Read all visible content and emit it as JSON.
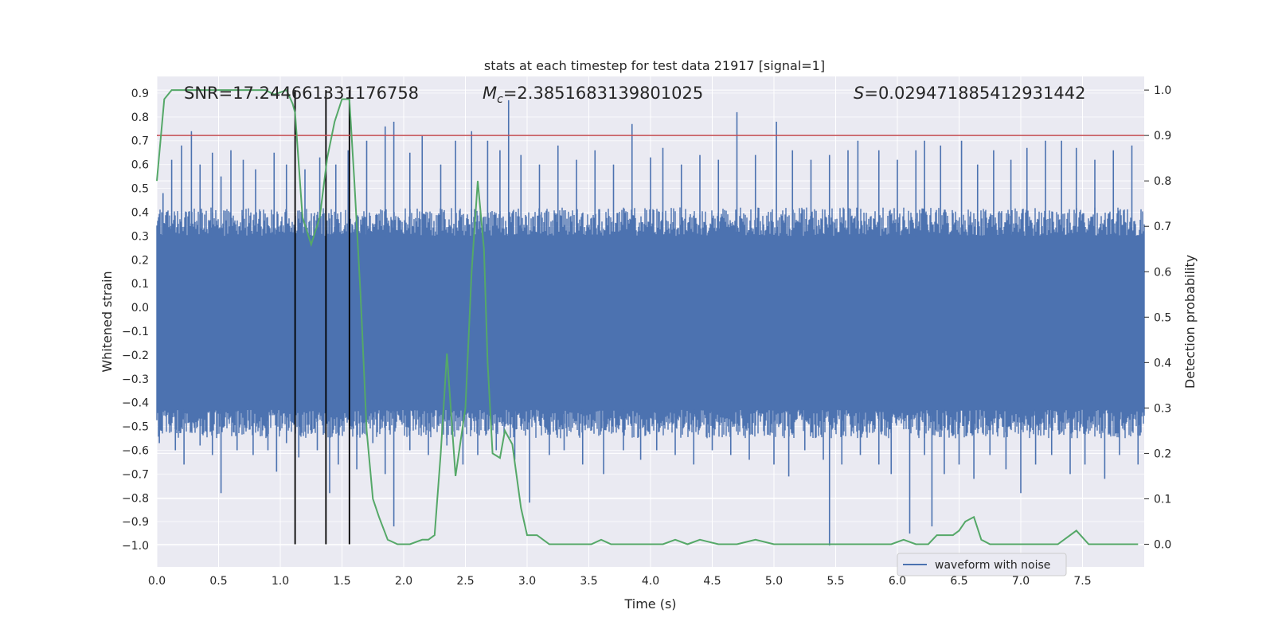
{
  "chart_data": {
    "type": "line",
    "title": "stats at each timestep for test data 21917 [signal=1]",
    "xlabel": "Time (s)",
    "ylabel_left": "Whitened strain",
    "ylabel_right": "Detection probability",
    "xlim": [
      0.0,
      8.0
    ],
    "ylim_left": [
      -1.09,
      0.97
    ],
    "ylim_right": [
      -0.05,
      1.03
    ],
    "x_ticks": [
      0.0,
      0.5,
      1.0,
      1.5,
      2.0,
      2.5,
      3.0,
      3.5,
      4.0,
      4.5,
      5.0,
      5.5,
      6.0,
      6.5,
      7.0,
      7.5
    ],
    "x_tick_labels": [
      "0.0",
      "0.5",
      "1.0",
      "1.5",
      "2.0",
      "2.5",
      "3.0",
      "3.5",
      "4.0",
      "4.5",
      "5.0",
      "5.5",
      "6.0",
      "6.5",
      "7.0",
      "7.5"
    ],
    "y_left_ticks": [
      0.9,
      0.8,
      0.7,
      0.6,
      0.5,
      0.4,
      0.3,
      0.2,
      0.1,
      0.0,
      -0.1,
      -0.2,
      -0.3,
      -0.4,
      -0.5,
      -0.6,
      -0.7,
      -0.8,
      -0.9,
      -1.0
    ],
    "y_left_tick_labels": [
      "0.9",
      "0.8",
      "0.7",
      "0.6",
      "0.5",
      "0.4",
      "0.3",
      "0.2",
      "0.1",
      "0.0",
      "−0.1",
      "−0.2",
      "−0.3",
      "−0.4",
      "−0.5",
      "−0.6",
      "−0.7",
      "−0.8",
      "−0.9",
      "−1.0"
    ],
    "y_right_ticks": [
      1.0,
      0.9,
      0.8,
      0.7,
      0.6,
      0.5,
      0.4,
      0.3,
      0.2,
      0.1,
      0.0
    ],
    "y_right_tick_labels": [
      "1.0",
      "0.9",
      "0.8",
      "0.7",
      "0.6",
      "0.5",
      "0.4",
      "0.3",
      "0.2",
      "0.1",
      "0.0"
    ],
    "annotations": {
      "snr": "SNR=17.244661331176758",
      "mc_symbol": "M",
      "mc_sub": "c",
      "mc_value": "=2.3851683139801025",
      "s_symbol": "S",
      "s_value": "=0.029471885412931442"
    },
    "threshold_right": 0.9,
    "vertical_markers_s": [
      1.12,
      1.37,
      1.56
    ],
    "waveform": {
      "name": "waveform with noise",
      "t_start": 0.0,
      "t_end": 8.0,
      "envelope_top": 0.3,
      "envelope_bottom": -0.43,
      "spikes": [
        [
          0.05,
          0.48
        ],
        [
          0.12,
          0.62
        ],
        [
          0.2,
          0.68
        ],
        [
          0.28,
          0.74
        ],
        [
          0.35,
          0.6
        ],
        [
          0.45,
          0.65
        ],
        [
          0.52,
          0.55
        ],
        [
          0.6,
          0.66
        ],
        [
          0.7,
          0.62
        ],
        [
          0.8,
          0.58
        ],
        [
          0.95,
          0.65
        ],
        [
          1.05,
          0.6
        ],
        [
          1.2,
          0.58
        ],
        [
          1.32,
          0.63
        ],
        [
          1.45,
          0.6
        ],
        [
          1.55,
          0.66
        ],
        [
          1.7,
          0.7
        ],
        [
          1.85,
          0.76
        ],
        [
          1.92,
          0.78
        ],
        [
          2.05,
          0.65
        ],
        [
          2.15,
          0.72
        ],
        [
          2.3,
          0.6
        ],
        [
          2.42,
          0.7
        ],
        [
          2.55,
          0.74
        ],
        [
          2.68,
          0.7
        ],
        [
          2.78,
          0.66
        ],
        [
          2.85,
          0.87
        ],
        [
          2.95,
          0.64
        ],
        [
          3.1,
          0.6
        ],
        [
          3.25,
          0.68
        ],
        [
          3.4,
          0.62
        ],
        [
          3.55,
          0.66
        ],
        [
          3.7,
          0.6
        ],
        [
          3.85,
          0.77
        ],
        [
          4.0,
          0.63
        ],
        [
          4.1,
          0.67
        ],
        [
          4.25,
          0.6
        ],
        [
          4.4,
          0.64
        ],
        [
          4.55,
          0.62
        ],
        [
          4.7,
          0.82
        ],
        [
          4.85,
          0.64
        ],
        [
          5.02,
          0.78
        ],
        [
          5.15,
          0.66
        ],
        [
          5.3,
          0.62
        ],
        [
          5.45,
          0.64
        ],
        [
          5.6,
          0.66
        ],
        [
          5.68,
          0.7
        ],
        [
          5.85,
          0.66
        ],
        [
          6.0,
          0.62
        ],
        [
          6.15,
          0.66
        ],
        [
          6.22,
          0.7
        ],
        [
          6.35,
          0.68
        ],
        [
          6.52,
          0.7
        ],
        [
          6.65,
          0.6
        ],
        [
          6.78,
          0.66
        ],
        [
          6.92,
          0.62
        ],
        [
          7.05,
          0.67
        ],
        [
          7.2,
          0.7
        ],
        [
          7.33,
          0.7
        ],
        [
          7.45,
          0.67
        ],
        [
          7.6,
          0.62
        ],
        [
          7.75,
          0.66
        ],
        [
          7.9,
          0.68
        ]
      ],
      "dips": [
        [
          0.02,
          -0.57
        ],
        [
          0.15,
          -0.6
        ],
        [
          0.22,
          -0.66
        ],
        [
          0.35,
          -0.58
        ],
        [
          0.45,
          -0.62
        ],
        [
          0.52,
          -0.78
        ],
        [
          0.65,
          -0.6
        ],
        [
          0.78,
          -0.62
        ],
        [
          0.9,
          -0.6
        ],
        [
          0.97,
          -0.69
        ],
        [
          1.05,
          -0.57
        ],
        [
          1.15,
          -0.63
        ],
        [
          1.3,
          -0.6
        ],
        [
          1.4,
          -0.78
        ],
        [
          1.47,
          -0.66
        ],
        [
          1.62,
          -0.68
        ],
        [
          1.75,
          -0.57
        ],
        [
          1.85,
          -0.7
        ],
        [
          1.92,
          -0.92
        ],
        [
          2.05,
          -0.6
        ],
        [
          2.2,
          -0.62
        ],
        [
          2.35,
          -0.58
        ],
        [
          2.48,
          -0.66
        ],
        [
          2.6,
          -0.62
        ],
        [
          2.75,
          -0.6
        ],
        [
          2.9,
          -0.64
        ],
        [
          3.02,
          -0.82
        ],
        [
          3.18,
          -0.62
        ],
        [
          3.3,
          -0.6
        ],
        [
          3.45,
          -0.66
        ],
        [
          3.62,
          -0.7
        ],
        [
          3.78,
          -0.6
        ],
        [
          3.92,
          -0.64
        ],
        [
          4.05,
          -0.6
        ],
        [
          4.2,
          -0.62
        ],
        [
          4.35,
          -0.66
        ],
        [
          4.5,
          -0.6
        ],
        [
          4.65,
          -0.62
        ],
        [
          4.8,
          -0.64
        ],
        [
          5.0,
          -0.66
        ],
        [
          5.12,
          -0.71
        ],
        [
          5.25,
          -0.6
        ],
        [
          5.4,
          -0.64
        ],
        [
          5.45,
          -1.0
        ],
        [
          5.55,
          -0.66
        ],
        [
          5.7,
          -0.62
        ],
        [
          5.85,
          -0.66
        ],
        [
          5.95,
          -0.7
        ],
        [
          6.1,
          -0.95
        ],
        [
          6.22,
          -0.62
        ],
        [
          6.28,
          -0.92
        ],
        [
          6.38,
          -0.7
        ],
        [
          6.5,
          -0.66
        ],
        [
          6.62,
          -0.72
        ],
        [
          6.75,
          -0.62
        ],
        [
          6.88,
          -0.68
        ],
        [
          7.0,
          -0.78
        ],
        [
          7.12,
          -0.66
        ],
        [
          7.25,
          -0.62
        ],
        [
          7.4,
          -0.7
        ],
        [
          7.52,
          -0.66
        ],
        [
          7.68,
          -0.72
        ],
        [
          7.8,
          -0.62
        ],
        [
          7.95,
          -0.66
        ]
      ]
    },
    "probability": {
      "x": [
        0.0,
        0.06,
        0.12,
        0.18,
        0.3,
        0.45,
        0.6,
        0.75,
        0.88,
        0.95,
        1.05,
        1.1,
        1.12,
        1.18,
        1.25,
        1.32,
        1.38,
        1.44,
        1.5,
        1.56,
        1.6,
        1.65,
        1.7,
        1.75,
        1.8,
        1.87,
        1.95,
        2.05,
        2.15,
        2.2,
        2.25,
        2.3,
        2.35,
        2.42,
        2.5,
        2.55,
        2.6,
        2.65,
        2.68,
        2.72,
        2.78,
        2.82,
        2.88,
        2.95,
        3.0,
        3.08,
        3.18,
        3.28,
        3.4,
        3.52,
        3.6,
        3.68,
        3.8,
        3.95,
        4.1,
        4.2,
        4.3,
        4.4,
        4.55,
        4.7,
        4.85,
        5.0,
        5.1,
        5.2,
        5.35,
        5.5,
        5.65,
        5.8,
        5.95,
        6.05,
        6.15,
        6.25,
        6.32,
        6.4,
        6.45,
        6.5,
        6.55,
        6.62,
        6.68,
        6.75,
        6.85,
        7.0,
        7.15,
        7.3,
        7.45,
        7.55,
        7.7,
        7.85,
        7.95
      ],
      "values": [
        0.8,
        0.98,
        1.0,
        1.0,
        1.0,
        1.0,
        1.0,
        1.0,
        1.0,
        0.99,
        1.0,
        0.97,
        0.95,
        0.72,
        0.66,
        0.72,
        0.85,
        0.93,
        0.98,
        0.98,
        0.8,
        0.55,
        0.25,
        0.1,
        0.06,
        0.01,
        0.0,
        0.0,
        0.01,
        0.01,
        0.02,
        0.2,
        0.42,
        0.15,
        0.3,
        0.6,
        0.8,
        0.65,
        0.4,
        0.2,
        0.19,
        0.25,
        0.22,
        0.08,
        0.02,
        0.02,
        0.0,
        0.0,
        0.0,
        0.0,
        0.01,
        0.0,
        0.0,
        0.0,
        0.0,
        0.01,
        0.0,
        0.01,
        0.0,
        0.0,
        0.01,
        0.0,
        0.0,
        0.0,
        0.0,
        0.0,
        0.0,
        0.0,
        0.0,
        0.01,
        0.0,
        0.0,
        0.02,
        0.02,
        0.02,
        0.03,
        0.05,
        0.06,
        0.01,
        0.0,
        0.0,
        0.0,
        0.0,
        0.0,
        0.03,
        0.0,
        0.0,
        0.0,
        0.0
      ]
    },
    "colors": {
      "background": "#eaeaf2",
      "grid": "#ffffff",
      "waveform": "#4c72b0",
      "probability": "#55a868",
      "threshold": "#c44e52",
      "markers": "#000000"
    },
    "legend": {
      "label": "waveform with noise",
      "placement": "lower-right"
    }
  }
}
